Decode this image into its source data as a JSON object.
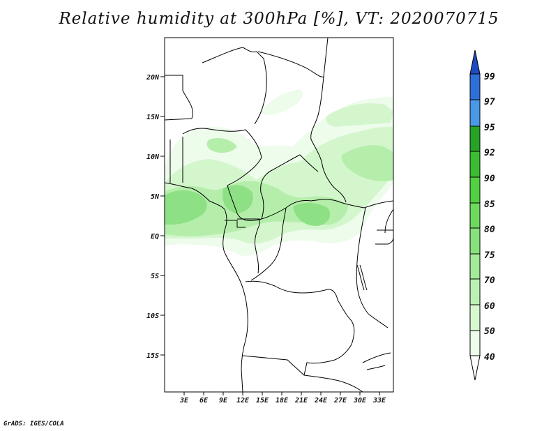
{
  "title": "Relative humidity at 300hPa [%], VT: 2020070715",
  "credit": "GrADS: IGES/COLA",
  "lat_labels": [
    "20N",
    "15N",
    "10N",
    "5N",
    "EQ",
    "5S",
    "10S",
    "15S"
  ],
  "lon_labels": [
    "3E",
    "6E",
    "9E",
    "12E",
    "15E",
    "18E",
    "21E",
    "24E",
    "27E",
    "30E",
    "33E"
  ],
  "colorbar": {
    "labels": [
      "40",
      "50",
      "60",
      "70",
      "75",
      "80",
      "85",
      "90",
      "92",
      "95",
      "97",
      "99"
    ],
    "colors": [
      "#eefcec",
      "#d7f7d1",
      "#bdf0b4",
      "#a3ea99",
      "#88e27b",
      "#6dda5e",
      "#53cf42",
      "#3cbc32",
      "#27a326",
      "#14891b",
      "#4a98e6",
      "#2f6fda",
      "#1f4bc2"
    ]
  },
  "colors": {
    "l1": "#eefcec",
    "l2": "#d4f6cd",
    "l3": "#b5eeab",
    "l4": "#8ee084"
  }
}
